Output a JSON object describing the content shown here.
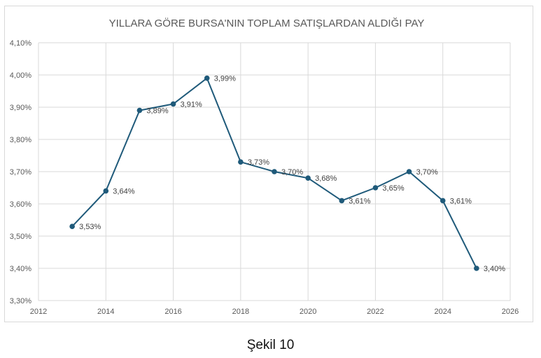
{
  "caption": "Şekil 10",
  "chart_data": {
    "type": "line",
    "title": "YILLARA GÖRE BURSA'NIN TOPLAM SATIŞLARDAN ALDIĞI PAY",
    "xlabel": "",
    "ylabel": "",
    "xlim": [
      2012,
      2026
    ],
    "ylim": [
      3.3,
      4.1
    ],
    "x_ticks": [
      "2012",
      "2014",
      "2016",
      "2018",
      "2020",
      "2022",
      "2024",
      "2026"
    ],
    "y_ticks": [
      "3,30%",
      "3,40%",
      "3,50%",
      "3,60%",
      "3,70%",
      "3,80%",
      "3,90%",
      "4,00%",
      "4,10%"
    ],
    "grid": true,
    "legend": "none",
    "line_color": "#1f5a7a",
    "series": [
      {
        "x": [
          2013,
          2014,
          2015,
          2016,
          2017,
          2018,
          2019,
          2020,
          2021,
          2022,
          2023,
          2024,
          2025
        ],
        "values": [
          3.53,
          3.64,
          3.89,
          3.91,
          3.99,
          3.73,
          3.7,
          3.68,
          3.61,
          3.65,
          3.7,
          3.61,
          3.4
        ],
        "labels": [
          "3,53%",
          "3,64%",
          "3,89%",
          "3,91%",
          "3,99%",
          "3,73%",
          "3,70%",
          "3,68%",
          "3,61%",
          "3,65%",
          "3,70%",
          "3,61%",
          "3,40%"
        ]
      }
    ]
  }
}
